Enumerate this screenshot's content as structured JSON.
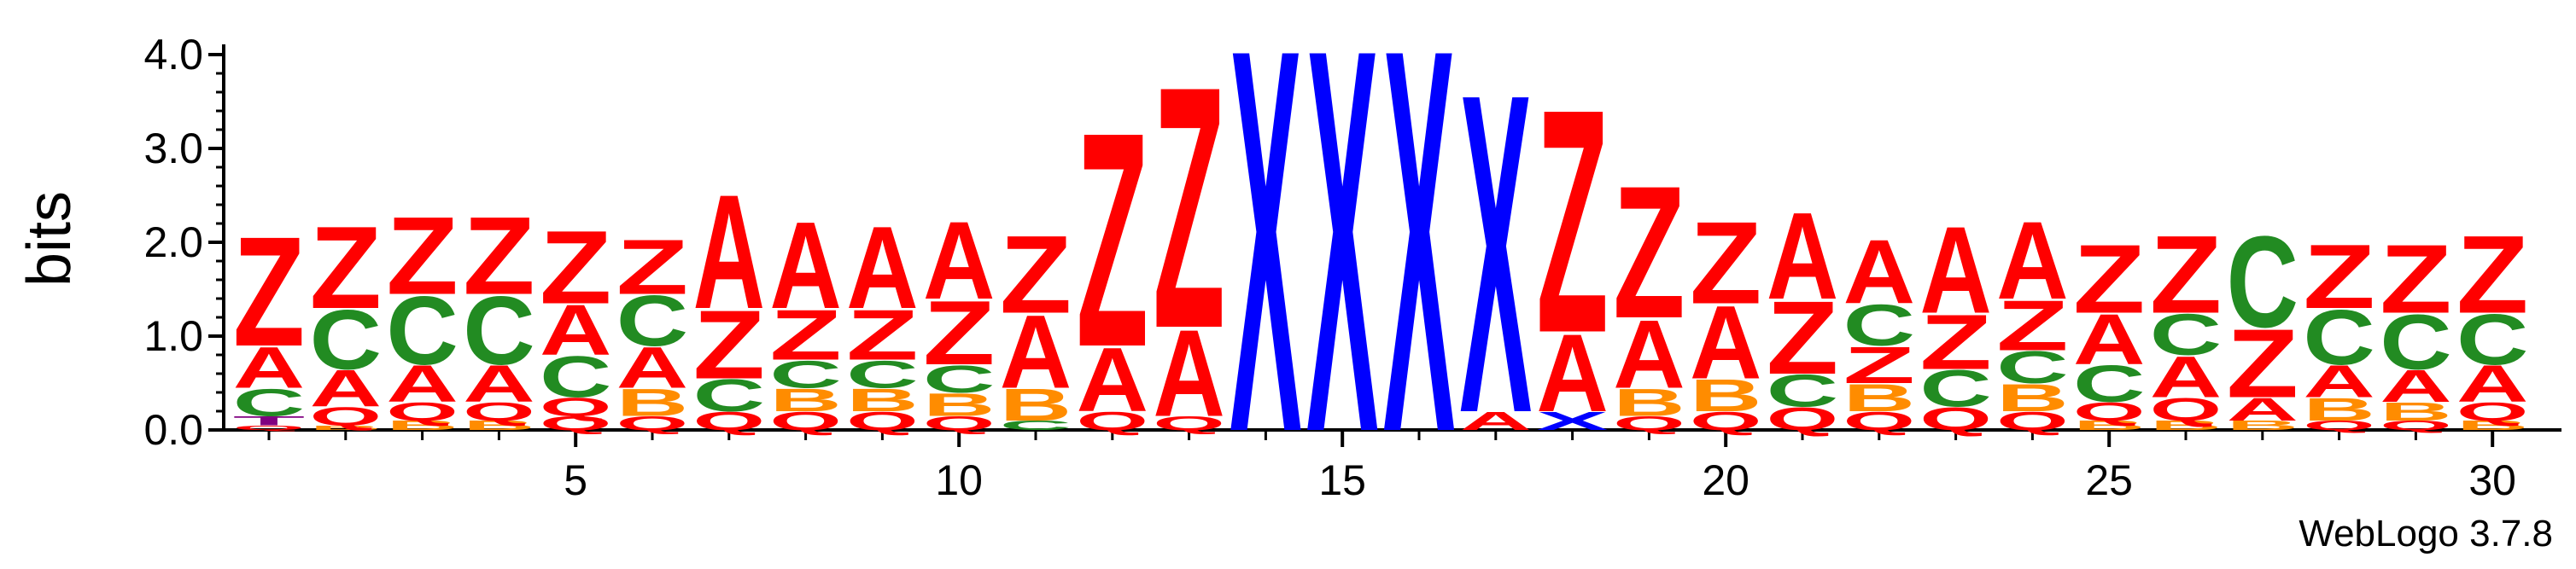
{
  "chart_data": {
    "type": "sequence-logo",
    "title": "",
    "xlabel": "",
    "ylabel": "bits",
    "ylim": [
      0,
      4.1
    ],
    "y_ticks": [
      "0.0",
      "1.0",
      "2.0",
      "3.0",
      "4.0"
    ],
    "x_ticks": [
      5,
      10,
      15,
      20,
      25,
      30
    ],
    "footer": "WebLogo 3.7.8",
    "colors": {
      "Z": "#FF0000",
      "A": "#FF0000",
      "Q": "#FF0000",
      "C": "#228B22",
      "B": "#FF8C00",
      "X": "#0000FF",
      "T": "#800080"
    },
    "positions": [
      {
        "pos": 1,
        "stack": [
          [
            "Q",
            0.05
          ],
          [
            "T",
            0.1
          ],
          [
            "C",
            0.3
          ],
          [
            "A",
            0.45
          ],
          [
            "Z",
            1.2
          ]
        ]
      },
      {
        "pos": 2,
        "stack": [
          [
            "B",
            0.05
          ],
          [
            "Q",
            0.2
          ],
          [
            "A",
            0.4
          ],
          [
            "C",
            0.65
          ],
          [
            "Z",
            0.9
          ]
        ]
      },
      {
        "pos": 3,
        "stack": [
          [
            "B",
            0.1
          ],
          [
            "Q",
            0.2
          ],
          [
            "A",
            0.4
          ],
          [
            "C",
            0.75
          ],
          [
            "Z",
            0.85
          ]
        ]
      },
      {
        "pos": 4,
        "stack": [
          [
            "B",
            0.1
          ],
          [
            "Q",
            0.2
          ],
          [
            "A",
            0.4
          ],
          [
            "C",
            0.75
          ],
          [
            "Z",
            0.85
          ]
        ]
      },
      {
        "pos": 5,
        "stack": [
          [
            "Q",
            0.15
          ],
          [
            "Q",
            0.2
          ],
          [
            "C",
            0.45
          ],
          [
            "A",
            0.55
          ],
          [
            "Z",
            0.8
          ]
        ]
      },
      {
        "pos": 6,
        "stack": [
          [
            "Q",
            0.15
          ],
          [
            "B",
            0.3
          ],
          [
            "A",
            0.45
          ],
          [
            "C",
            0.55
          ],
          [
            "Z",
            0.6
          ]
        ]
      },
      {
        "pos": 7,
        "stack": [
          [
            "Q",
            0.2
          ],
          [
            "C",
            0.35
          ],
          [
            "Z",
            0.75
          ],
          [
            "A",
            1.25
          ]
        ]
      },
      {
        "pos": 8,
        "stack": [
          [
            "Q",
            0.2
          ],
          [
            "B",
            0.25
          ],
          [
            "C",
            0.3
          ],
          [
            "Z",
            0.55
          ],
          [
            "A",
            0.95
          ]
        ]
      },
      {
        "pos": 9,
        "stack": [
          [
            "Q",
            0.2
          ],
          [
            "B",
            0.25
          ],
          [
            "C",
            0.3
          ],
          [
            "Z",
            0.55
          ],
          [
            "A",
            0.9
          ]
        ]
      },
      {
        "pos": 10,
        "stack": [
          [
            "Q",
            0.15
          ],
          [
            "B",
            0.25
          ],
          [
            "C",
            0.3
          ],
          [
            "Z",
            0.7
          ],
          [
            "A",
            0.85
          ]
        ]
      },
      {
        "pos": 11,
        "stack": [
          [
            "C",
            0.1
          ],
          [
            "B",
            0.35
          ],
          [
            "A",
            0.8
          ],
          [
            "Z",
            0.85
          ]
        ]
      },
      {
        "pos": 12,
        "stack": [
          [
            "Q",
            0.2
          ],
          [
            "A",
            0.7
          ],
          [
            "Z",
            2.35
          ]
        ]
      },
      {
        "pos": 13,
        "stack": [
          [
            "Q",
            0.15
          ],
          [
            "A",
            0.95
          ],
          [
            "Z",
            2.65
          ]
        ]
      },
      {
        "pos": 14,
        "stack": [
          [
            "X",
            4.2
          ]
        ]
      },
      {
        "pos": 15,
        "stack": [
          [
            "X",
            4.2
          ]
        ]
      },
      {
        "pos": 16,
        "stack": [
          [
            "X",
            4.2
          ]
        ]
      },
      {
        "pos": 17,
        "stack": [
          [
            "A",
            0.2
          ],
          [
            "X",
            3.5
          ]
        ]
      },
      {
        "pos": 18,
        "stack": [
          [
            "X",
            0.2
          ],
          [
            "A",
            0.85
          ],
          [
            "Z",
            2.45
          ]
        ]
      },
      {
        "pos": 19,
        "stack": [
          [
            "Q",
            0.15
          ],
          [
            "B",
            0.3
          ],
          [
            "A",
            0.75
          ],
          [
            "Z",
            1.45
          ]
        ]
      },
      {
        "pos": 20,
        "stack": [
          [
            "Q",
            0.2
          ],
          [
            "B",
            0.35
          ],
          [
            "A",
            0.8
          ],
          [
            "Z",
            0.9
          ]
        ]
      },
      {
        "pos": 21,
        "stack": [
          [
            "Q",
            0.25
          ],
          [
            "C",
            0.35
          ],
          [
            "Z",
            0.8
          ],
          [
            "A",
            0.95
          ]
        ]
      },
      {
        "pos": 22,
        "stack": [
          [
            "Q",
            0.2
          ],
          [
            "B",
            0.3
          ],
          [
            "Z",
            0.4
          ],
          [
            "C",
            0.45
          ],
          [
            "A",
            0.7
          ]
        ]
      },
      {
        "pos": 23,
        "stack": [
          [
            "Q",
            0.25
          ],
          [
            "C",
            0.4
          ],
          [
            "Z",
            0.6
          ],
          [
            "A",
            0.95
          ]
        ]
      },
      {
        "pos": 24,
        "stack": [
          [
            "Q",
            0.2
          ],
          [
            "B",
            0.3
          ],
          [
            "C",
            0.35
          ],
          [
            "Z",
            0.55
          ],
          [
            "A",
            0.85
          ]
        ]
      },
      {
        "pos": 25,
        "stack": [
          [
            "B",
            0.1
          ],
          [
            "Q",
            0.2
          ],
          [
            "C",
            0.4
          ],
          [
            "A",
            0.55
          ],
          [
            "Z",
            0.75
          ]
        ]
      },
      {
        "pos": 26,
        "stack": [
          [
            "B",
            0.1
          ],
          [
            "Q",
            0.25
          ],
          [
            "A",
            0.45
          ],
          [
            "C",
            0.45
          ],
          [
            "Z",
            0.85
          ]
        ]
      },
      {
        "pos": 27,
        "stack": [
          [
            "B",
            0.1
          ],
          [
            "A",
            0.25
          ],
          [
            "Z",
            0.75
          ],
          [
            "C",
            1.0
          ]
        ]
      },
      {
        "pos": 28,
        "stack": [
          [
            "Q",
            0.1
          ],
          [
            "B",
            0.25
          ],
          [
            "A",
            0.35
          ],
          [
            "C",
            0.6
          ],
          [
            "Z",
            0.7
          ]
        ]
      },
      {
        "pos": 29,
        "stack": [
          [
            "Q",
            0.1
          ],
          [
            "B",
            0.2
          ],
          [
            "A",
            0.35
          ],
          [
            "C",
            0.6
          ],
          [
            "Z",
            0.75
          ]
        ]
      },
      {
        "pos": 30,
        "stack": [
          [
            "B",
            0.1
          ],
          [
            "Q",
            0.2
          ],
          [
            "A",
            0.4
          ],
          [
            "C",
            0.55
          ],
          [
            "Z",
            0.85
          ]
        ]
      }
    ]
  }
}
